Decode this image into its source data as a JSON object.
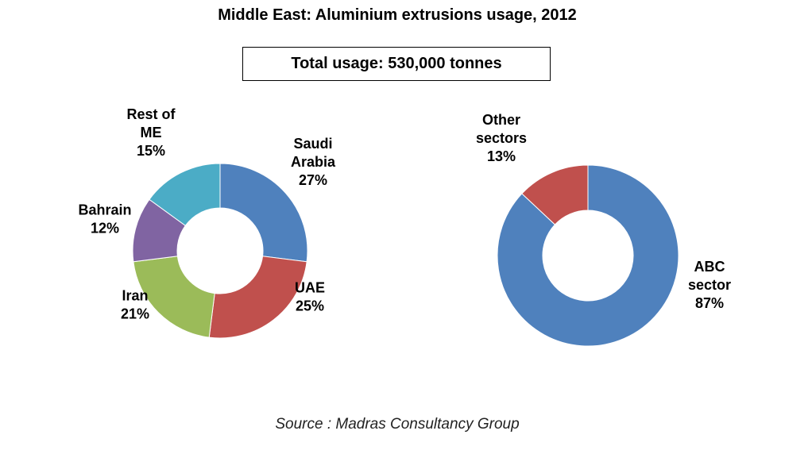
{
  "title": "Middle East: Aluminium extrusions usage, 2012",
  "total_label": "Total usage: 530,000 tonnes",
  "source": "Source : Madras Consultancy Group",
  "chart_data": [
    {
      "type": "pie",
      "title": "",
      "categories": [
        "Saudi Arabia",
        "UAE",
        "Iran",
        "Bahrain",
        "Rest of ME"
      ],
      "values": [
        27,
        25,
        21,
        12,
        15
      ],
      "unit": "%",
      "colors": [
        "#4f81bd",
        "#c0504d",
        "#9bbb59",
        "#8064a2",
        "#4bacc6"
      ],
      "labels": [
        [
          "Saudi",
          "Arabia",
          "27%"
        ],
        [
          "UAE",
          "25%"
        ],
        [
          "Iran",
          "21%"
        ],
        [
          "Bahrain",
          "12%"
        ],
        [
          "Rest of",
          "ME",
          "15%"
        ]
      ],
      "start_angle_deg": 0,
      "style": "donut"
    },
    {
      "type": "pie",
      "title": "",
      "categories": [
        "ABC sector",
        "Other sectors"
      ],
      "values": [
        87,
        13
      ],
      "unit": "%",
      "colors": [
        "#4f81bd",
        "#c0504d"
      ],
      "labels": [
        [
          "ABC",
          "sector",
          "87%"
        ],
        [
          "Other",
          "sectors",
          "13%"
        ]
      ],
      "start_angle_deg": 0,
      "style": "donut"
    }
  ]
}
